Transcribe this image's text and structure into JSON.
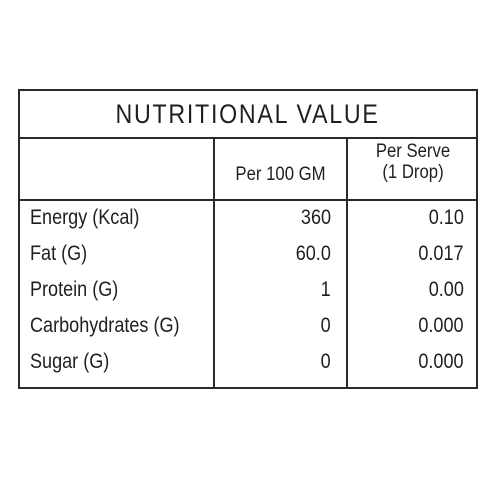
{
  "table": {
    "title": "NUTRITIONAL  VALUE",
    "columns": {
      "per_100": "Per 100 GM",
      "per_serve_line1": "Per Serve",
      "per_serve_line2": "(1 Drop)"
    },
    "rows": [
      {
        "name": "Energy (Kcal)",
        "per_100": "360",
        "per_serve": "0.10"
      },
      {
        "name": "Fat (G)",
        "per_100": "60.0",
        "per_serve": "0.017"
      },
      {
        "name": "Protein (G)",
        "per_100": "1",
        "per_serve": "0.00"
      },
      {
        "name": "Carbohydrates (G)",
        "per_100": "0",
        "per_serve": "0.000"
      },
      {
        "name": "Sugar (G)",
        "per_100": "0",
        "per_serve": "0.000"
      }
    ]
  }
}
